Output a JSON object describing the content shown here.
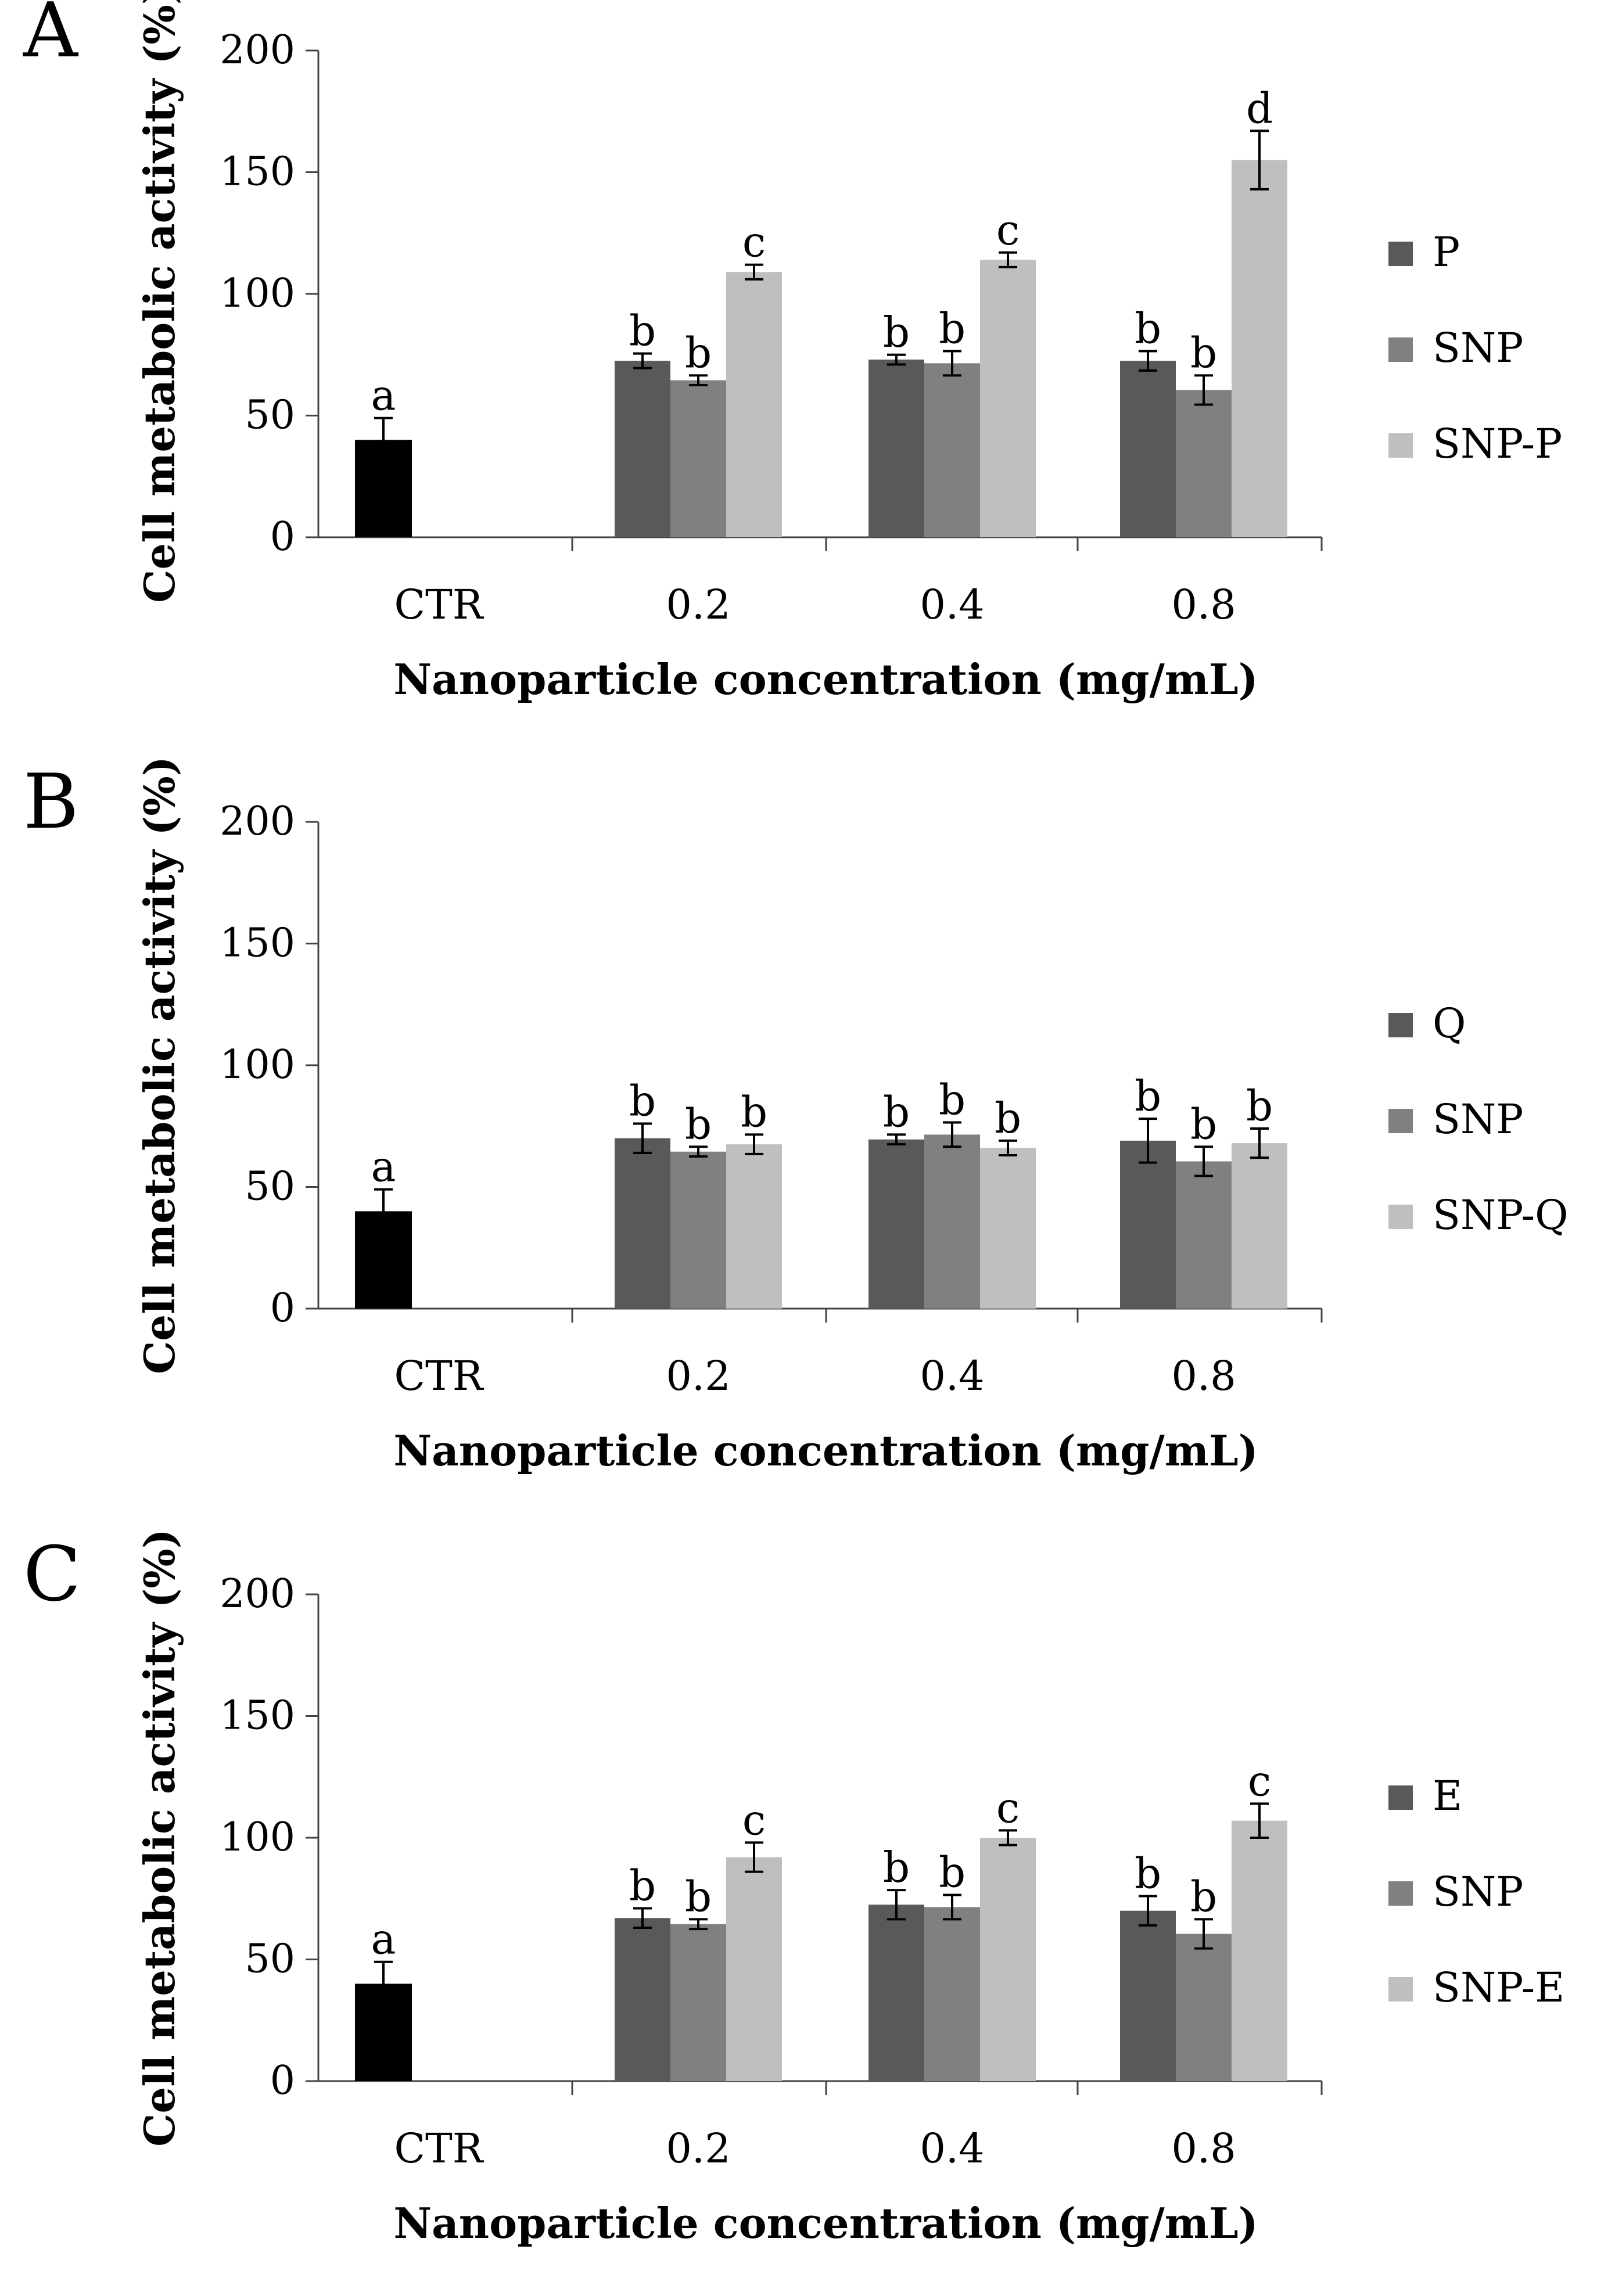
{
  "chart_data": [
    {
      "type": "bar",
      "panel": "A",
      "ylabel": "Cell metabolic activity (%)",
      "xlabel": "Nanoparticle concentration (mg/mL)",
      "ylim": [
        0,
        200
      ],
      "yticks": [
        0,
        50,
        100,
        150,
        200
      ],
      "categories": [
        "CTR",
        "0.2",
        "0.4",
        "0.8"
      ],
      "control": {
        "category": "CTR",
        "value": 40,
        "error": 9,
        "label": "a",
        "color": "#000000"
      },
      "series": [
        {
          "name": "P",
          "color": "#595959",
          "values": [
            null,
            72.5,
            73,
            72.5
          ],
          "errors": [
            null,
            3,
            2,
            4
          ],
          "labels": [
            null,
            "b",
            "b",
            "b"
          ]
        },
        {
          "name": "SNP",
          "color": "#808080",
          "values": [
            null,
            64.5,
            71.5,
            60.5
          ],
          "errors": [
            null,
            2,
            5,
            6
          ],
          "labels": [
            null,
            "b",
            "b",
            "b"
          ]
        },
        {
          "name": "SNP-P",
          "color": "#bfbfbf",
          "values": [
            null,
            109,
            114,
            155
          ],
          "errors": [
            null,
            3,
            3,
            12
          ],
          "labels": [
            null,
            "c",
            "c",
            "d"
          ]
        }
      ],
      "legend_position": "right"
    },
    {
      "type": "bar",
      "panel": "B",
      "ylabel": "Cell metabolic activity (%)",
      "xlabel": "Nanoparticle concentration (mg/mL)",
      "ylim": [
        0,
        200
      ],
      "yticks": [
        0,
        50,
        100,
        150,
        200
      ],
      "categories": [
        "CTR",
        "0.2",
        "0.4",
        "0.8"
      ],
      "control": {
        "category": "CTR",
        "value": 40,
        "error": 9,
        "label": "a",
        "color": "#000000"
      },
      "series": [
        {
          "name": "Q",
          "color": "#595959",
          "values": [
            null,
            70,
            69.5,
            69
          ],
          "errors": [
            null,
            6,
            2,
            9
          ],
          "labels": [
            null,
            "b",
            "b",
            "b"
          ]
        },
        {
          "name": "SNP",
          "color": "#808080",
          "values": [
            null,
            64.5,
            71.5,
            60.5
          ],
          "errors": [
            null,
            2,
            5,
            6
          ],
          "labels": [
            null,
            "b",
            "b",
            "b"
          ]
        },
        {
          "name": "SNP-Q",
          "color": "#bfbfbf",
          "values": [
            null,
            67.5,
            66,
            68
          ],
          "errors": [
            null,
            4,
            3,
            6
          ],
          "labels": [
            null,
            "b",
            "b",
            "b"
          ]
        }
      ],
      "legend_position": "right"
    },
    {
      "type": "bar",
      "panel": "C",
      "ylabel": "Cell metabolic activity (%)",
      "xlabel": "Nanoparticle concentration (mg/mL)",
      "ylim": [
        0,
        200
      ],
      "yticks": [
        0,
        50,
        100,
        150,
        200
      ],
      "categories": [
        "CTR",
        "0.2",
        "0.4",
        "0.8"
      ],
      "control": {
        "category": "CTR",
        "value": 40,
        "error": 9,
        "label": "a",
        "color": "#000000"
      },
      "series": [
        {
          "name": "E",
          "color": "#595959",
          "values": [
            null,
            67,
            72.5,
            70
          ],
          "errors": [
            null,
            4,
            6,
            6
          ],
          "labels": [
            null,
            "b",
            "b",
            "b"
          ]
        },
        {
          "name": "SNP",
          "color": "#808080",
          "values": [
            null,
            64.5,
            71.5,
            60.5
          ],
          "errors": [
            null,
            2,
            5,
            6
          ],
          "labels": [
            null,
            "b",
            "b",
            "b"
          ]
        },
        {
          "name": "SNP-E",
          "color": "#bfbfbf",
          "values": [
            null,
            92,
            100,
            107
          ],
          "errors": [
            null,
            6,
            3,
            7
          ],
          "labels": [
            null,
            "c",
            "c",
            "c"
          ]
        }
      ],
      "legend_position": "right"
    }
  ]
}
